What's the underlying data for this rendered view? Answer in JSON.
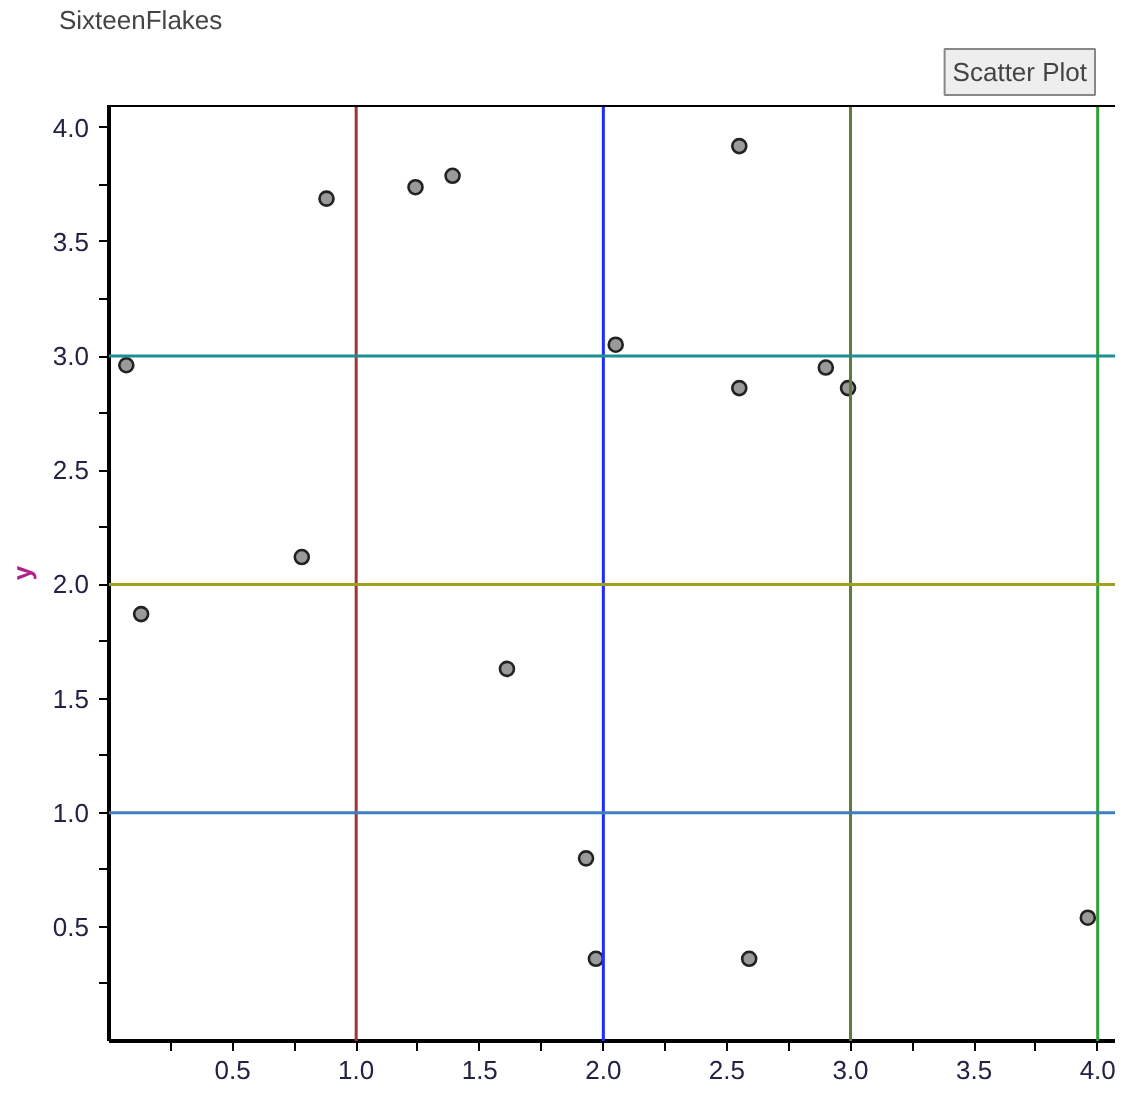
{
  "chart_data": {
    "type": "scatter",
    "title": "SixteenFlakes",
    "ylabel": "y",
    "annotations": [
      "Scatter Plot"
    ],
    "x": [
      0.07,
      0.13,
      0.78,
      0.88,
      1.24,
      1.39,
      1.61,
      1.93,
      1.97,
      2.05,
      2.55,
      2.55,
      2.59,
      2.9,
      2.99,
      3.96
    ],
    "series": [
      {
        "color": "#9a9a9a",
        "values": [
          2.96,
          1.87,
          2.12,
          3.69,
          3.74,
          3.79,
          1.63,
          0.8,
          0.36,
          3.05,
          3.92,
          2.86,
          0.36,
          2.95,
          2.86,
          0.54
        ]
      }
    ],
    "xlim": [
      0,
      4.07
    ],
    "ylim": [
      0,
      4.1
    ],
    "xticks": [
      {
        "value": 0.25,
        "label": null
      },
      {
        "value": 0.5,
        "label": "0.5"
      },
      {
        "value": 0.75,
        "label": null
      },
      {
        "value": 1.0,
        "label": "1.0"
      },
      {
        "value": 1.25,
        "label": null
      },
      {
        "value": 1.5,
        "label": "1.5"
      },
      {
        "value": 1.75,
        "label": null
      },
      {
        "value": 2.0,
        "label": "2.0"
      },
      {
        "value": 2.25,
        "label": null
      },
      {
        "value": 2.5,
        "label": "2.5"
      },
      {
        "value": 2.75,
        "label": null
      },
      {
        "value": 3.0,
        "label": "3.0"
      },
      {
        "value": 3.25,
        "label": null
      },
      {
        "value": 3.5,
        "label": "3.5"
      },
      {
        "value": 3.75,
        "label": null
      },
      {
        "value": 4.0,
        "label": "4.0"
      }
    ],
    "yticks": [
      {
        "value": 0.25,
        "label": null
      },
      {
        "value": 0.5,
        "label": "0.5"
      },
      {
        "value": 0.75,
        "label": null
      },
      {
        "value": 1.0,
        "label": "1.0"
      },
      {
        "value": 1.25,
        "label": null
      },
      {
        "value": 1.5,
        "label": "1.5"
      },
      {
        "value": 1.75,
        "label": null
      },
      {
        "value": 2.0,
        "label": "2.0"
      },
      {
        "value": 2.25,
        "label": null
      },
      {
        "value": 2.5,
        "label": "2.5"
      },
      {
        "value": 2.75,
        "label": null
      },
      {
        "value": 3.0,
        "label": "3.0"
      },
      {
        "value": 3.25,
        "label": null
      },
      {
        "value": 3.5,
        "label": "3.5"
      },
      {
        "value": 3.75,
        "label": null
      },
      {
        "value": 4.0,
        "label": "4.0"
      }
    ],
    "ref_lines": [
      {
        "axis": "x",
        "value": 1,
        "color": "#a03434"
      },
      {
        "axis": "x",
        "value": 2,
        "color": "#1f2bff"
      },
      {
        "axis": "x",
        "value": 3,
        "color": "#5f7a3a"
      },
      {
        "axis": "x",
        "value": 4,
        "color": "#2e9e3a"
      },
      {
        "axis": "y",
        "value": 3,
        "color": "#1f9090"
      },
      {
        "axis": "y",
        "value": 2,
        "color": "#a0a01c"
      },
      {
        "axis": "y",
        "value": 1,
        "color": "#3f7fc0"
      }
    ],
    "marker": "circle",
    "grid": false
  }
}
